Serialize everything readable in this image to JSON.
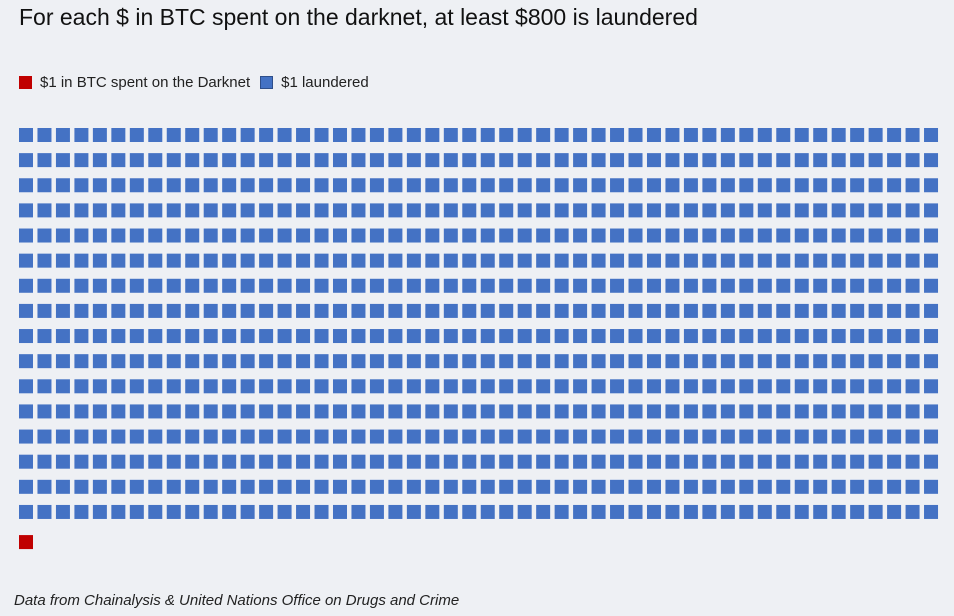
{
  "chart_data": {
    "type": "waffle",
    "title": "For each $ in BTC spent on the darknet, at least $800 is laundered",
    "legend": [
      {
        "label": "$1 in BTC spent on the Darknet",
        "color": "#c00000",
        "count": 1
      },
      {
        "label": "$1 laundered",
        "color": "#4472c4",
        "count": 800
      }
    ],
    "columns": 50,
    "legend_placement": "top-left"
  },
  "footnote": "Data from Chainalysis & United Nations Office on Drugs and Crime"
}
